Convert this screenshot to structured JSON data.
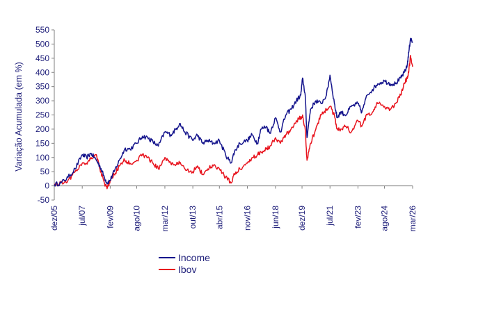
{
  "chart_data": {
    "type": "line",
    "title": "",
    "xlabel": "",
    "ylabel": "Variação Acumulada (em %)",
    "ylim": [
      -50,
      550
    ],
    "yticks": [
      -50,
      0,
      50,
      100,
      150,
      200,
      250,
      300,
      350,
      400,
      450,
      500,
      550
    ],
    "xlim": [
      2005.92,
      2026.17
    ],
    "xticks": [
      {
        "label": "dez/05",
        "t": 2005.92
      },
      {
        "label": "jul/07",
        "t": 2007.5
      },
      {
        "label": "fev/09",
        "t": 2009.08
      },
      {
        "label": "ago/10",
        "t": 2010.58
      },
      {
        "label": "mar/12",
        "t": 2012.17
      },
      {
        "label": "out/13",
        "t": 2013.75
      },
      {
        "label": "abr/15",
        "t": 2015.25
      },
      {
        "label": "nov/16",
        "t": 2016.83
      },
      {
        "label": "jun/18",
        "t": 2018.42
      },
      {
        "label": "dez/19",
        "t": 2019.92
      },
      {
        "label": "jul/21",
        "t": 2021.5
      },
      {
        "label": "fev/23",
        "t": 2023.08
      },
      {
        "label": "ago/24",
        "t": 2024.58
      },
      {
        "label": "mar/26",
        "t": 2026.17
      }
    ],
    "series": [
      {
        "name": "Income",
        "color": "#14148c",
        "x": [
          2005.92,
          2006.3,
          2006.7,
          2007.1,
          2007.5,
          2007.75,
          2008.0,
          2008.3,
          2008.5,
          2008.75,
          2008.9,
          2009.08,
          2009.3,
          2009.6,
          2009.9,
          2010.2,
          2010.58,
          2010.9,
          2011.2,
          2011.5,
          2011.8,
          2012.17,
          2012.5,
          2012.8,
          2013.0,
          2013.3,
          2013.75,
          2014.0,
          2014.3,
          2014.6,
          2014.9,
          2015.25,
          2015.6,
          2015.9,
          2016.1,
          2016.4,
          2016.83,
          2017.1,
          2017.4,
          2017.6,
          2017.9,
          2018.1,
          2018.42,
          2018.7,
          2019.0,
          2019.3,
          2019.6,
          2019.85,
          2019.95,
          2020.1,
          2020.2,
          2020.4,
          2020.7,
          2021.0,
          2021.3,
          2021.5,
          2021.75,
          2021.9,
          2022.1,
          2022.4,
          2022.7,
          2023.08,
          2023.3,
          2023.6,
          2023.9,
          2024.2,
          2024.58,
          2024.9,
          2025.2,
          2025.5,
          2025.7,
          2025.85,
          2025.95,
          2026.05,
          2026.17
        ],
        "values": [
          5,
          10,
          30,
          60,
          110,
          100,
          115,
          90,
          70,
          30,
          10,
          20,
          50,
          90,
          130,
          130,
          150,
          175,
          170,
          155,
          140,
          190,
          180,
          200,
          220,
          190,
          160,
          180,
          150,
          160,
          150,
          160,
          110,
          80,
          120,
          150,
          160,
          180,
          150,
          200,
          210,
          185,
          240,
          190,
          250,
          270,
          300,
          320,
          380,
          320,
          170,
          270,
          300,
          290,
          320,
          390,
          290,
          240,
          260,
          250,
          280,
          290,
          260,
          320,
          340,
          360,
          370,
          360,
          360,
          380,
          400,
          420,
          470,
          520,
          505
        ]
      },
      {
        "name": "Ibov",
        "color": "#e8141e",
        "x": [
          2005.92,
          2006.3,
          2006.7,
          2007.1,
          2007.5,
          2007.75,
          2008.0,
          2008.3,
          2008.5,
          2008.75,
          2008.9,
          2009.08,
          2009.3,
          2009.6,
          2009.9,
          2010.2,
          2010.58,
          2010.9,
          2011.2,
          2011.5,
          2011.8,
          2012.17,
          2012.5,
          2012.8,
          2013.0,
          2013.3,
          2013.75,
          2014.0,
          2014.3,
          2014.6,
          2014.9,
          2015.25,
          2015.6,
          2015.9,
          2016.1,
          2016.4,
          2016.83,
          2017.1,
          2017.4,
          2017.6,
          2017.9,
          2018.1,
          2018.42,
          2018.7,
          2019.0,
          2019.3,
          2019.6,
          2019.85,
          2019.95,
          2020.1,
          2020.2,
          2020.4,
          2020.7,
          2021.0,
          2021.3,
          2021.5,
          2021.75,
          2021.9,
          2022.1,
          2022.4,
          2022.7,
          2023.08,
          2023.3,
          2023.6,
          2023.9,
          2024.2,
          2024.58,
          2024.9,
          2025.2,
          2025.5,
          2025.7,
          2025.85,
          2025.95,
          2026.05,
          2026.17
        ],
        "values": [
          5,
          10,
          20,
          50,
          80,
          80,
          100,
          110,
          60,
          10,
          -10,
          20,
          40,
          70,
          90,
          80,
          90,
          110,
          100,
          80,
          60,
          100,
          80,
          75,
          80,
          60,
          50,
          70,
          40,
          60,
          70,
          60,
          30,
          10,
          40,
          60,
          80,
          100,
          110,
          120,
          130,
          140,
          170,
          150,
          180,
          200,
          230,
          240,
          250,
          200,
          90,
          150,
          200,
          250,
          270,
          280,
          250,
          200,
          200,
          210,
          190,
          230,
          210,
          250,
          260,
          290,
          280,
          270,
          290,
          320,
          360,
          380,
          400,
          460,
          420
        ]
      }
    ],
    "legend": {
      "position": "bottom-center",
      "entries": [
        "Income",
        "Ibov"
      ]
    }
  }
}
